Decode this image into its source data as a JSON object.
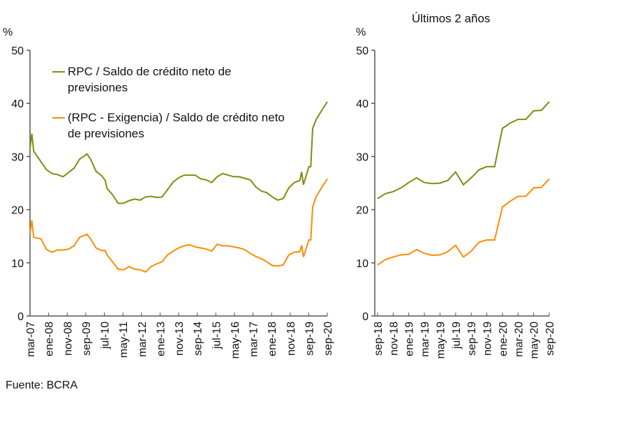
{
  "source": "Fuente: BCRA",
  "colors": {
    "rpc": "#7f8c0c",
    "rpc_exig": "#ff8c00",
    "axis": "#555555"
  },
  "chart_data": [
    {
      "type": "line",
      "ylabel": "%",
      "ylim": [
        0,
        50
      ],
      "yticks": [
        0,
        10,
        20,
        30,
        40,
        50
      ],
      "xlim": [
        "2007-03",
        "2020-09"
      ],
      "xtick_labels": [
        "mar-07",
        "ene-08",
        "nov-08",
        "sep-09",
        "jul-10",
        "may-11",
        "mar-12",
        "ene-13",
        "nov-13",
        "sep-14",
        "jul-15",
        "may-16",
        "mar-17",
        "ene-18",
        "nov-18",
        "sep-19",
        "sep-20"
      ],
      "legend": "top-left",
      "series": [
        {
          "name": "RPC / Saldo de crédito neto de previsiones",
          "points": [
            [
              "2007-03",
              31.5
            ],
            [
              "2007-04",
              34.3
            ],
            [
              "2007-05",
              31.0
            ],
            [
              "2007-06",
              30.5
            ],
            [
              "2007-09",
              29.0
            ],
            [
              "2007-12",
              27.5
            ],
            [
              "2008-03",
              26.8
            ],
            [
              "2008-06",
              26.6
            ],
            [
              "2008-09",
              26.2
            ],
            [
              "2008-12",
              27.0
            ],
            [
              "2009-03",
              27.8
            ],
            [
              "2009-06",
              29.5
            ],
            [
              "2009-09",
              30.2
            ],
            [
              "2009-10",
              30.5
            ],
            [
              "2009-12",
              29.5
            ],
            [
              "2010-03",
              27.2
            ],
            [
              "2010-06",
              26.4
            ],
            [
              "2010-08",
              25.5
            ],
            [
              "2010-09",
              24.0
            ],
            [
              "2010-12",
              22.8
            ],
            [
              "2011-03",
              21.2
            ],
            [
              "2011-06",
              21.2
            ],
            [
              "2011-09",
              21.7
            ],
            [
              "2011-12",
              22.0
            ],
            [
              "2012-03",
              21.8
            ],
            [
              "2012-06",
              22.4
            ],
            [
              "2012-09",
              22.5
            ],
            [
              "2012-12",
              22.3
            ],
            [
              "2013-03",
              22.4
            ],
            [
              "2013-06",
              23.8
            ],
            [
              "2013-09",
              25.2
            ],
            [
              "2013-12",
              26.0
            ],
            [
              "2014-03",
              26.5
            ],
            [
              "2014-06",
              26.5
            ],
            [
              "2014-09",
              26.5
            ],
            [
              "2014-12",
              25.8
            ],
            [
              "2015-03",
              25.6
            ],
            [
              "2015-06",
              25.1
            ],
            [
              "2015-09",
              26.2
            ],
            [
              "2015-12",
              26.8
            ],
            [
              "2016-03",
              26.5
            ],
            [
              "2016-06",
              26.2
            ],
            [
              "2016-09",
              26.2
            ],
            [
              "2016-12",
              25.9
            ],
            [
              "2017-03",
              25.6
            ],
            [
              "2017-06",
              24.3
            ],
            [
              "2017-09",
              23.5
            ],
            [
              "2017-12",
              23.2
            ],
            [
              "2018-03",
              22.4
            ],
            [
              "2018-06",
              21.8
            ],
            [
              "2018-09",
              22.1
            ],
            [
              "2018-12",
              24.1
            ],
            [
              "2019-03",
              25.1
            ],
            [
              "2019-06",
              25.5
            ],
            [
              "2019-07",
              27.1
            ],
            [
              "2019-08",
              24.7
            ],
            [
              "2019-11",
              28.1
            ],
            [
              "2019-12",
              28.1
            ],
            [
              "2020-01",
              35.3
            ],
            [
              "2020-03",
              37.0
            ],
            [
              "2020-06",
              38.7
            ],
            [
              "2020-09",
              40.3
            ]
          ]
        },
        {
          "name": "(RPC - Exigencia) / Saldo de crédito neto de previsiones",
          "points": [
            [
              "2007-03",
              15.5
            ],
            [
              "2007-04",
              18.0
            ],
            [
              "2007-05",
              14.8
            ],
            [
              "2007-09",
              14.5
            ],
            [
              "2007-12",
              12.5
            ],
            [
              "2008-03",
              12.0
            ],
            [
              "2008-06",
              12.4
            ],
            [
              "2008-09",
              12.4
            ],
            [
              "2008-12",
              12.6
            ],
            [
              "2009-03",
              13.2
            ],
            [
              "2009-06",
              14.8
            ],
            [
              "2009-09",
              15.2
            ],
            [
              "2009-10",
              15.4
            ],
            [
              "2009-12",
              14.5
            ],
            [
              "2010-03",
              12.8
            ],
            [
              "2010-06",
              12.3
            ],
            [
              "2010-08",
              12.3
            ],
            [
              "2010-09",
              11.5
            ],
            [
              "2010-12",
              10.2
            ],
            [
              "2011-03",
              8.8
            ],
            [
              "2011-06",
              8.7
            ],
            [
              "2011-09",
              9.3
            ],
            [
              "2011-12",
              8.8
            ],
            [
              "2012-03",
              8.7
            ],
            [
              "2012-06",
              8.3
            ],
            [
              "2012-09",
              9.3
            ],
            [
              "2012-12",
              9.8
            ],
            [
              "2013-03",
              10.2
            ],
            [
              "2013-06",
              11.5
            ],
            [
              "2013-09",
              12.2
            ],
            [
              "2013-12",
              12.8
            ],
            [
              "2014-03",
              13.2
            ],
            [
              "2014-06",
              13.4
            ],
            [
              "2014-09",
              13.0
            ],
            [
              "2014-12",
              12.8
            ],
            [
              "2015-03",
              12.6
            ],
            [
              "2015-06",
              12.2
            ],
            [
              "2015-09",
              13.5
            ],
            [
              "2015-12",
              13.2
            ],
            [
              "2016-03",
              13.2
            ],
            [
              "2016-06",
              13.0
            ],
            [
              "2016-09",
              12.8
            ],
            [
              "2016-12",
              12.5
            ],
            [
              "2017-03",
              11.8
            ],
            [
              "2017-06",
              11.2
            ],
            [
              "2017-09",
              10.8
            ],
            [
              "2017-12",
              10.2
            ],
            [
              "2018-03",
              9.5
            ],
            [
              "2018-06",
              9.4
            ],
            [
              "2018-09",
              9.6
            ],
            [
              "2018-12",
              11.5
            ],
            [
              "2019-03",
              12.0
            ],
            [
              "2019-06",
              12.1
            ],
            [
              "2019-07",
              13.3
            ],
            [
              "2019-08",
              11.1
            ],
            [
              "2019-11",
              14.3
            ],
            [
              "2019-12",
              14.3
            ],
            [
              "2020-01",
              20.5
            ],
            [
              "2020-03",
              22.5
            ],
            [
              "2020-06",
              24.2
            ],
            [
              "2020-09",
              25.8
            ]
          ]
        }
      ]
    },
    {
      "type": "line",
      "title": "Últimos 2 años",
      "ylabel": "%",
      "ylim": [
        0,
        50
      ],
      "yticks": [
        0,
        10,
        20,
        30,
        40,
        50
      ],
      "xtick_labels": [
        "sep-18",
        "nov-18",
        "ene-19",
        "mar-19",
        "may-19",
        "jul-19",
        "sep-19",
        "nov-19",
        "ene-20",
        "mar-20",
        "may-20",
        "sep-20"
      ],
      "xtick_labels_full": [
        "sep-18",
        "nov-18",
        "ene-19",
        "mar-19",
        "may-19",
        "jul-19",
        "sep-19",
        "nov-19",
        "ene-20",
        "mar-20",
        "may-20",
        "sep-20"
      ],
      "series": [
        {
          "values": [
            22.1,
            23.0,
            23.4,
            24.1,
            25.1,
            26.0,
            25.1,
            24.9,
            25.0,
            25.5,
            27.1,
            24.7,
            26.0,
            27.5,
            28.1,
            28.1,
            35.3,
            36.3,
            37.0,
            37.0,
            38.6,
            38.7,
            40.3
          ]
        },
        {
          "values": [
            9.6,
            10.6,
            11.1,
            11.5,
            11.6,
            12.5,
            11.8,
            11.4,
            11.5,
            12.1,
            13.3,
            11.1,
            12.2,
            13.9,
            14.3,
            14.3,
            20.5,
            21.6,
            22.5,
            22.5,
            24.1,
            24.2,
            25.8
          ]
        }
      ]
    }
  ]
}
